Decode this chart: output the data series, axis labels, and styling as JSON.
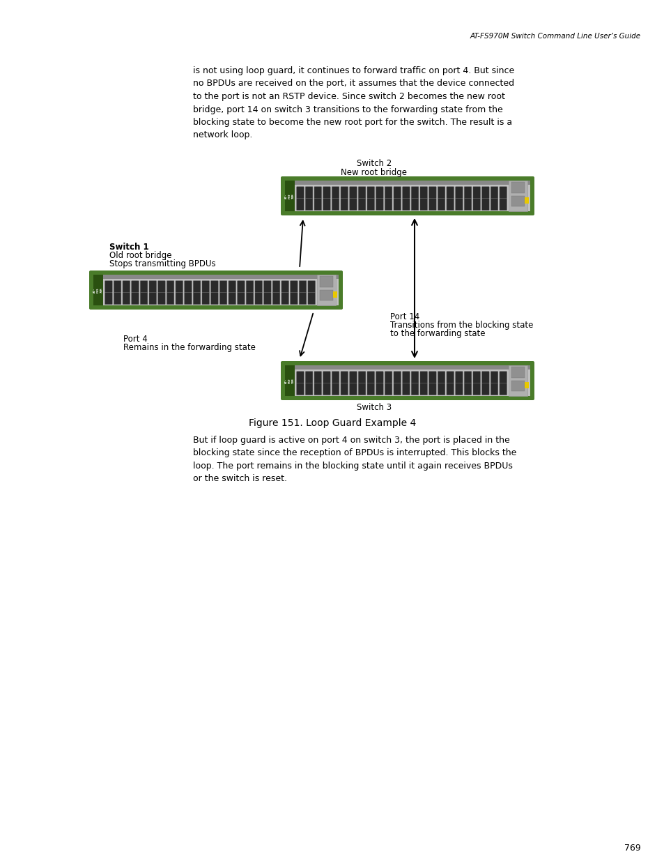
{
  "page_header": "AT-FS970M Switch Command Line User’s Guide",
  "page_number": "769",
  "body_text_1_lines": [
    "is not using loop guard, it continues to forward traffic on port 4. But since",
    "no BPDUs are received on the port, it assumes that the device connected",
    "to the port is not an RSTP device. Since switch 2 becomes the new root",
    "bridge, port 14 on switch 3 transitions to the forwarding state from the",
    "blocking state to become the new root port for the switch. The result is a",
    "network loop."
  ],
  "figure_caption": "Figure 151. Loop Guard Example 4",
  "body_text_2_lines": [
    "But if loop guard is active on port 4 on switch 3, the port is placed in the",
    "blocking state since the reception of BPDUs is interrupted. This blocks the",
    "loop. The port remains in the blocking state until it again receives BPDUs",
    "or the switch is reset."
  ],
  "switch2_label": "Switch 2",
  "switch2_sublabel": "New root bridge",
  "switch1_label": "Switch 1",
  "switch1_sublabel1": "Old root bridge",
  "switch1_sublabel2": "Stops transmitting BPDUs",
  "switch3_label": "Switch 3",
  "port4_label": "Port 4",
  "port4_sublabel": "Remains in the forwarding state",
  "port14_label": "Port 14",
  "port14_sublabel1": "Transitions from the blocking state",
  "port14_sublabel2": "to the forwarding state",
  "bg_color": "#ffffff",
  "switch_green": "#4a7c2a",
  "switch_gray": "#c0c0c0",
  "switch_dark_gray": "#888888",
  "switch_black": "#1a1a1a",
  "switch_light": "#d8d8d8",
  "port_dark": "#2a2a2a",
  "yellow_ind": "#e8c800",
  "text_color": "#000000"
}
